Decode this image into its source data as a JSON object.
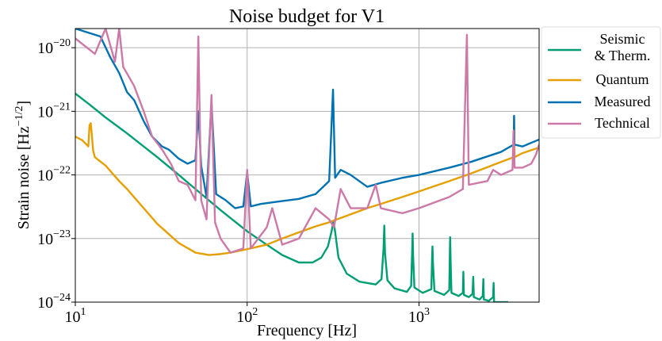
{
  "chart_data": {
    "type": "line",
    "title": "Noise budget for V1",
    "xlabel": "Frequency [Hz]",
    "ylabel_main": "Strain noise [Hz",
    "ylabel_sup": "−1/2",
    "ylabel_close": "]",
    "x_scale": "log",
    "y_scale": "log",
    "xlim": [
      10,
      5000
    ],
    "ylim": [
      1e-24,
      2e-20
    ],
    "grid": true,
    "legend_position": "outside-top-right",
    "x_ticks": [
      {
        "value": 10,
        "base": "10",
        "exp": "1"
      },
      {
        "value": 100,
        "base": "10",
        "exp": "2"
      },
      {
        "value": 1000,
        "base": "10",
        "exp": "3"
      }
    ],
    "y_ticks": [
      {
        "value": 1e-24,
        "base": "10",
        "exp": "−24"
      },
      {
        "value": 1e-23,
        "base": "10",
        "exp": "−23"
      },
      {
        "value": 1e-22,
        "base": "10",
        "exp": "−22"
      },
      {
        "value": 1e-21,
        "base": "10",
        "exp": "−21"
      },
      {
        "value": 1e-20,
        "base": "10",
        "exp": "−20"
      }
    ],
    "series": [
      {
        "name": "Seismic & Therm.",
        "legend_lines": [
          "Seismic",
          "& Therm."
        ],
        "color": "#009e73",
        "points": [
          [
            10,
            1.9e-21
          ],
          [
            12,
            1.3e-21
          ],
          [
            15,
            8e-22
          ],
          [
            20,
            4.5e-22
          ],
          [
            30,
            1.9e-22
          ],
          [
            40,
            1e-22
          ],
          [
            50,
            6e-23
          ],
          [
            70,
            2.8e-23
          ],
          [
            100,
            1.3e-23
          ],
          [
            130,
            8e-24
          ],
          [
            160,
            5.5e-24
          ],
          [
            200,
            4.2e-24
          ],
          [
            240,
            4.2e-24
          ],
          [
            270,
            5e-24
          ],
          [
            295,
            7.5e-24
          ],
          [
            310,
            1.3e-23
          ],
          [
            318,
            1.9e-23
          ],
          [
            326,
            1.2e-23
          ],
          [
            340,
            5e-24
          ],
          [
            380,
            2.8e-24
          ],
          [
            450,
            2.1e-24
          ],
          [
            560,
            1.9e-24
          ],
          [
            605,
            2.3e-24
          ],
          [
            622,
            7e-24
          ],
          [
            628,
            1.6e-23
          ],
          [
            634,
            6e-24
          ],
          [
            655,
            2.2e-24
          ],
          [
            720,
            1.65e-24
          ],
          [
            850,
            1.45e-24
          ],
          [
            900,
            1.8e-24
          ],
          [
            912,
            6e-24
          ],
          [
            918,
            1.2e-23
          ],
          [
            925,
            5e-24
          ],
          [
            940,
            1.7e-24
          ],
          [
            1050,
            1.4e-24
          ],
          [
            1180,
            1.6e-24
          ],
          [
            1192,
            5e-24
          ],
          [
            1198,
            7.5e-24
          ],
          [
            1206,
            4e-24
          ],
          [
            1230,
            1.5e-24
          ],
          [
            1400,
            1.3e-24
          ],
          [
            1500,
            1.55e-24
          ],
          [
            1512,
            6e-24
          ],
          [
            1518,
            1.05e-23
          ],
          [
            1526,
            5e-24
          ],
          [
            1545,
            1.4e-24
          ],
          [
            1700,
            1.25e-24
          ],
          [
            1800,
            1.4e-24
          ],
          [
            1812,
            3e-24
          ],
          [
            1825,
            1.3e-24
          ],
          [
            1950,
            1.2e-24
          ],
          [
            2050,
            1.35e-24
          ],
          [
            2068,
            2.5e-24
          ],
          [
            2085,
            1.2e-24
          ],
          [
            2250,
            1.1e-24
          ],
          [
            2350,
            1.25e-24
          ],
          [
            2368,
            2.3e-24
          ],
          [
            2385,
            1.1e-24
          ],
          [
            2550,
            1.05e-24
          ],
          [
            2700,
            1.2e-24
          ],
          [
            2718,
            2e-24
          ],
          [
            2735,
            1e-24
          ],
          [
            2950,
            1e-24
          ],
          [
            3300,
            1e-24
          ]
        ]
      },
      {
        "name": "Quantum",
        "color": "#e69f00",
        "points": [
          [
            10,
            4e-22
          ],
          [
            11,
            3.5e-22
          ],
          [
            11.9,
            2.8e-22
          ],
          [
            12.1,
            6e-22
          ],
          [
            12.3,
            6.5e-22
          ],
          [
            12.5,
            4e-22
          ],
          [
            12.7,
            2.4e-22
          ],
          [
            13,
            1.9e-22
          ],
          [
            15,
            1.4e-22
          ],
          [
            18,
            8e-23
          ],
          [
            20,
            6e-23
          ],
          [
            25,
            3e-23
          ],
          [
            30,
            1.7e-23
          ],
          [
            40,
            8.5e-24
          ],
          [
            50,
            6e-24
          ],
          [
            60,
            5.5e-24
          ],
          [
            70,
            5.7e-24
          ],
          [
            80,
            6e-24
          ],
          [
            100,
            6.8e-24
          ],
          [
            130,
            8e-24
          ],
          [
            160,
            1e-23
          ],
          [
            200,
            1.25e-23
          ],
          [
            250,
            1.55e-23
          ],
          [
            300,
            1.8e-23
          ],
          [
            400,
            2.4e-23
          ],
          [
            500,
            3e-23
          ],
          [
            600,
            3.5e-23
          ],
          [
            800,
            4.5e-23
          ],
          [
            1000,
            5.5e-23
          ],
          [
            1500,
            8e-23
          ],
          [
            2000,
            1.05e-22
          ],
          [
            3000,
            1.6e-22
          ],
          [
            3550,
            1.9e-22
          ],
          [
            3575,
            8.5e-22
          ],
          [
            3600,
            1.9e-22
          ],
          [
            4000,
            2.2e-22
          ],
          [
            5000,
            2.7e-22
          ]
        ]
      },
      {
        "name": "Measured",
        "color": "#0072b2",
        "points": [
          [
            10,
            2e-20
          ],
          [
            14,
            1.5e-20
          ],
          [
            16,
            7e-21
          ],
          [
            18,
            4e-21
          ],
          [
            20,
            2e-21
          ],
          [
            22,
            1.5e-21
          ],
          [
            25,
            7e-22
          ],
          [
            28,
            4e-22
          ],
          [
            32,
            2.8e-22
          ],
          [
            35,
            2.5e-22
          ],
          [
            40,
            1.8e-22
          ],
          [
            45,
            1.5e-22
          ],
          [
            50,
            1.7e-22
          ],
          [
            52,
            1e-21
          ],
          [
            54,
            1.4e-22
          ],
          [
            58,
            4.5e-23
          ],
          [
            62,
            1.4e-21
          ],
          [
            66,
            5e-23
          ],
          [
            75,
            4e-23
          ],
          [
            85,
            3e-23
          ],
          [
            95,
            3.2e-23
          ],
          [
            100,
            1.1e-22
          ],
          [
            105,
            3.2e-23
          ],
          [
            120,
            3.5e-23
          ],
          [
            150,
            3.8e-23
          ],
          [
            200,
            4.2e-23
          ],
          [
            250,
            5e-23
          ],
          [
            300,
            8e-23
          ],
          [
            316,
            2.2e-21
          ],
          [
            325,
            9e-23
          ],
          [
            350,
            1.2e-22
          ],
          [
            400,
            1e-22
          ],
          [
            500,
            6.5e-23
          ],
          [
            600,
            7.5e-23
          ],
          [
            800,
            9e-23
          ],
          [
            1000,
            1e-22
          ],
          [
            1500,
            1.3e-22
          ],
          [
            2000,
            1.6e-22
          ],
          [
            3000,
            2.3e-22
          ],
          [
            3560,
            3e-22
          ],
          [
            3575,
            8.5e-22
          ],
          [
            3590,
            3e-22
          ],
          [
            4000,
            2.8e-22
          ],
          [
            4500,
            3.2e-22
          ],
          [
            5000,
            3.6e-22
          ]
        ]
      },
      {
        "name": "Technical",
        "color": "#cc79a7",
        "points": [
          [
            10,
            1.4e-20
          ],
          [
            13,
            8e-21
          ],
          [
            15,
            2e-20
          ],
          [
            17,
            6e-21
          ],
          [
            18,
            2e-20
          ],
          [
            19,
            5e-21
          ],
          [
            22,
            2.5e-21
          ],
          [
            25,
            1e-21
          ],
          [
            28,
            4e-22
          ],
          [
            32,
            2.5e-22
          ],
          [
            36,
            1.5e-22
          ],
          [
            40,
            8e-23
          ],
          [
            45,
            7e-23
          ],
          [
            50,
            4e-23
          ],
          [
            52,
            1.5e-20
          ],
          [
            54,
            4e-23
          ],
          [
            58,
            2e-23
          ],
          [
            62,
            1.8e-21
          ],
          [
            65,
            1.8e-23
          ],
          [
            70,
            1e-23
          ],
          [
            80,
            6e-24
          ],
          [
            95,
            7e-24
          ],
          [
            100,
            1.2e-22
          ],
          [
            105,
            7e-24
          ],
          [
            130,
            1.5e-23
          ],
          [
            140,
            3e-23
          ],
          [
            160,
            8e-24
          ],
          [
            200,
            1e-23
          ],
          [
            250,
            3e-23
          ],
          [
            300,
            2e-23
          ],
          [
            320,
            1.5e-23
          ],
          [
            350,
            6e-23
          ],
          [
            400,
            3e-23
          ],
          [
            500,
            3e-23
          ],
          [
            560,
            7e-23
          ],
          [
            600,
            3e-23
          ],
          [
            800,
            2.5e-23
          ],
          [
            1000,
            3e-23
          ],
          [
            1500,
            4.5e-23
          ],
          [
            1800,
            6e-23
          ],
          [
            1900,
            1.6e-20
          ],
          [
            1950,
            7e-23
          ],
          [
            2500,
            8e-23
          ],
          [
            2700,
            1.2e-22
          ],
          [
            3000,
            1e-22
          ],
          [
            3500,
            1.2e-22
          ],
          [
            3550,
            5e-22
          ],
          [
            3600,
            1.3e-22
          ],
          [
            4000,
            1.3e-22
          ],
          [
            4500,
            1.5e-22
          ],
          [
            4800,
            2.1e-22
          ],
          [
            5000,
            3e-22
          ]
        ]
      }
    ]
  }
}
